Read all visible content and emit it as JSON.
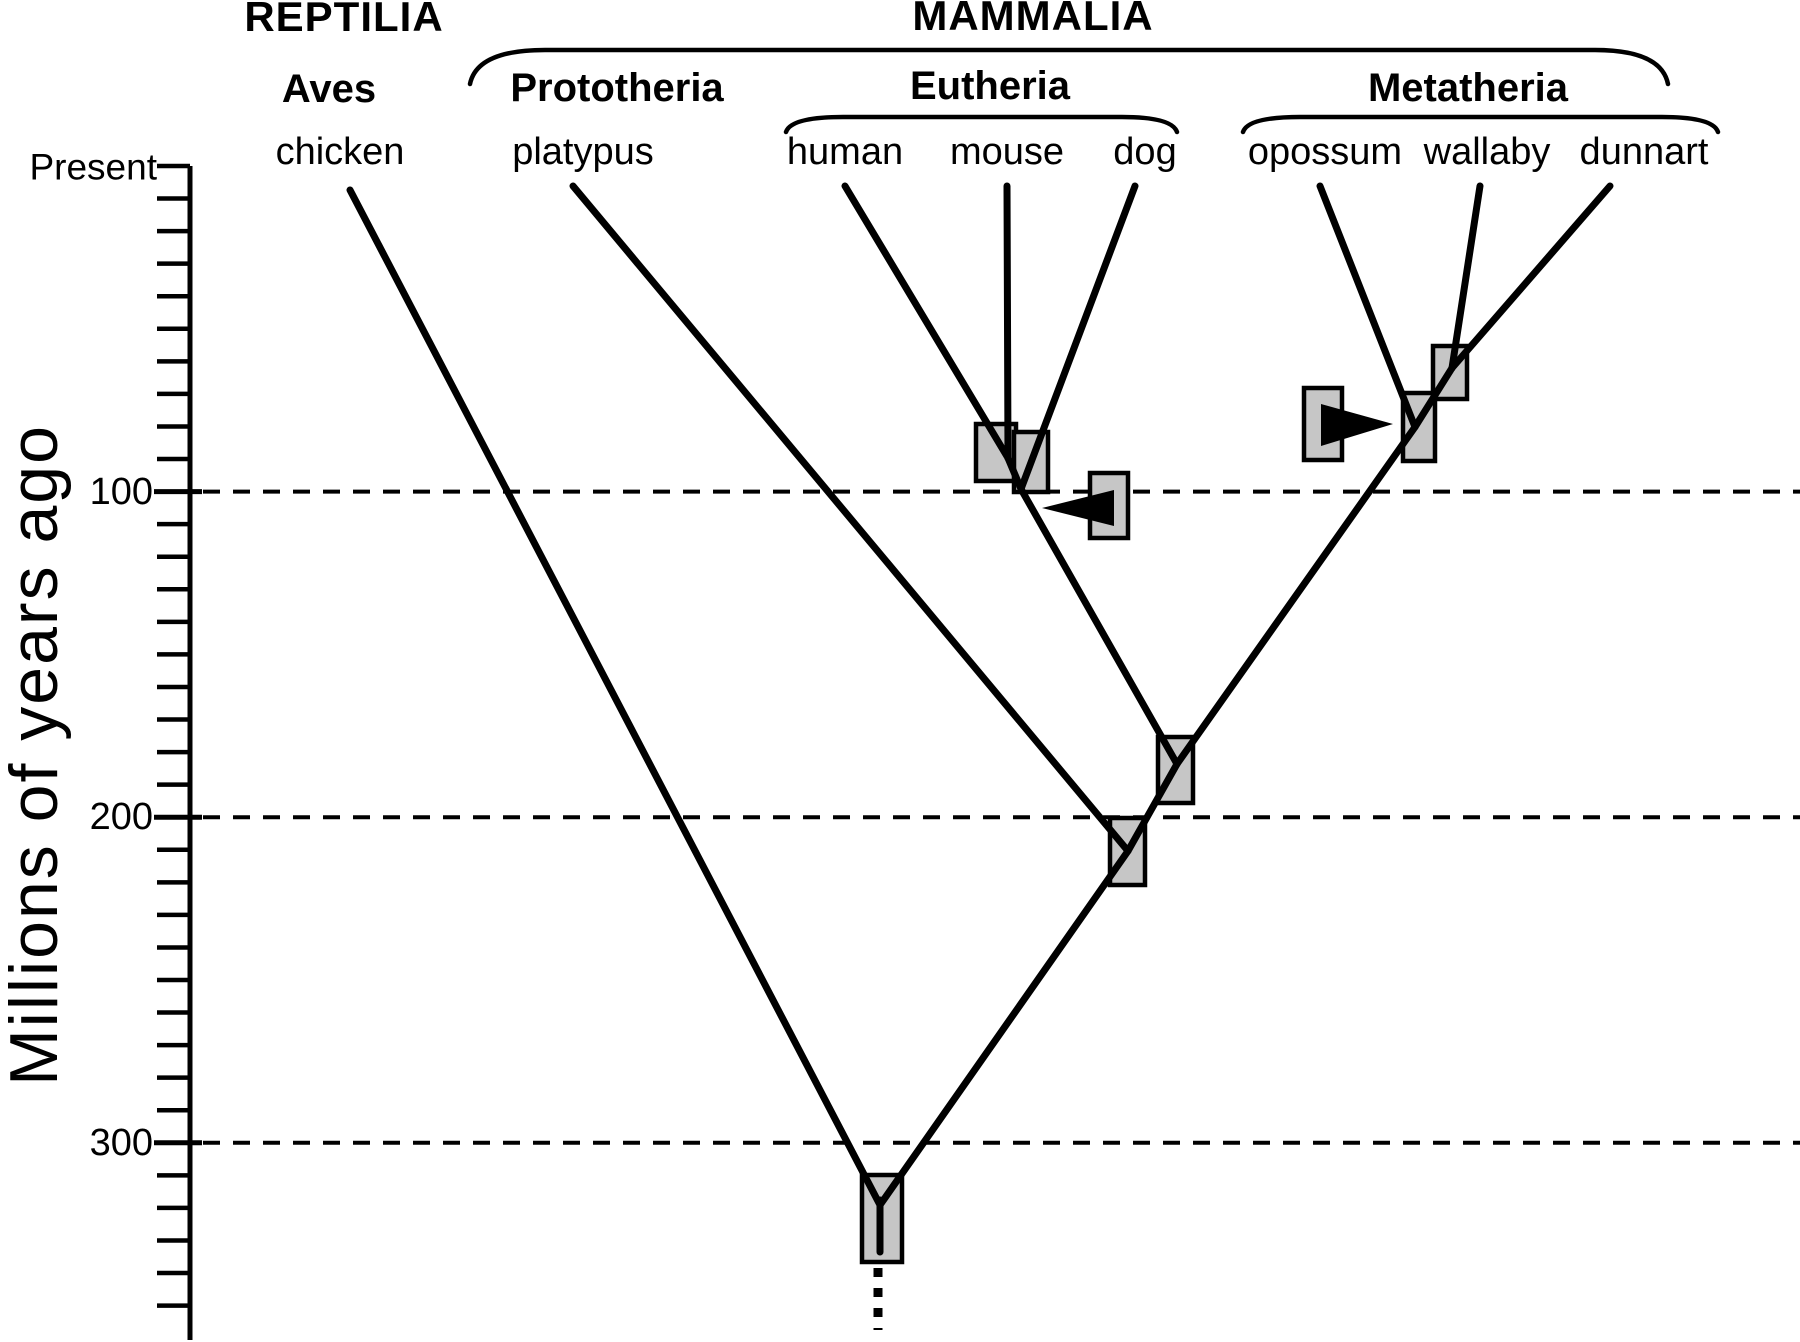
{
  "figure": {
    "title_groups": {
      "reptilia": "REPTILIA",
      "mammalia": "MAMMALIA"
    },
    "subgroups": {
      "aves": "Aves",
      "prototheria": "Prototheria",
      "eutheria": "Eutheria",
      "metatheria": "Metatheria"
    },
    "taxa": {
      "chicken": "chicken",
      "platypus": "platypus",
      "human": "human",
      "mouse": "mouse",
      "dog": "dog",
      "opossum": "opossum",
      "wallaby": "wallaby",
      "dunnart": "dunnart"
    },
    "axis": {
      "top_label": "Present",
      "axis_title": "Millions of years ago",
      "tick_100": "100",
      "tick_200": "200",
      "tick_300": "300",
      "minor_tick_interval_my": 10,
      "dashed_gridlines_my": [
        100,
        200,
        300
      ]
    },
    "tree": {
      "type": "phylogenetic-tree",
      "taxa_order": [
        "chicken",
        "platypus",
        "human",
        "mouse",
        "dog",
        "opossum",
        "wallaby",
        "dunnart"
      ],
      "groupings": {
        "REPTILIA": {
          "Aves": [
            "chicken"
          ]
        },
        "MAMMALIA": {
          "Prototheria": [
            "platypus"
          ],
          "Eutheria": [
            "human",
            "mouse",
            "dog"
          ],
          "Metatheria": [
            "opossum",
            "wallaby",
            "dunnart"
          ]
        }
      },
      "divergence_boxes_my": [
        {
          "name": "bird-mammal root split",
          "between": [
            "chicken",
            "all mammals"
          ],
          "range": [
            310,
            337
          ],
          "dotted_extension_to": 357
        },
        {
          "name": "prototheria-theria split",
          "between": [
            "platypus",
            "theria"
          ],
          "range": [
            200,
            221
          ]
        },
        {
          "name": "eutheria-metatheria split",
          "between": [
            "eutherians",
            "metatherians"
          ],
          "range": [
            176,
            196
          ]
        },
        {
          "name": "human-mouse split",
          "between": [
            "human",
            "mouse"
          ],
          "range": [
            79,
            97
          ]
        },
        {
          "name": "boreoeutheria split",
          "between": [
            "human+mouse",
            "dog"
          ],
          "range": [
            82,
            100
          ]
        },
        {
          "name": "eutheria stem marker (left-pointing arrow box)",
          "range": [
            94,
            114
          ]
        },
        {
          "name": "wallaby-dunnart split",
          "between": [
            "wallaby",
            "dunnart"
          ],
          "range": [
            55,
            72
          ]
        },
        {
          "name": "opossum split",
          "between": [
            "opossum",
            "wallaby+dunnart"
          ],
          "range": [
            70,
            91
          ]
        },
        {
          "name": "metatheria stem marker (right-pointing arrow box)",
          "range": [
            68,
            90
          ]
        }
      ]
    },
    "colors": {
      "line": "#000000",
      "box_fill": "#c6c6c6",
      "background": "#ffffff",
      "text": "#000000"
    }
  }
}
